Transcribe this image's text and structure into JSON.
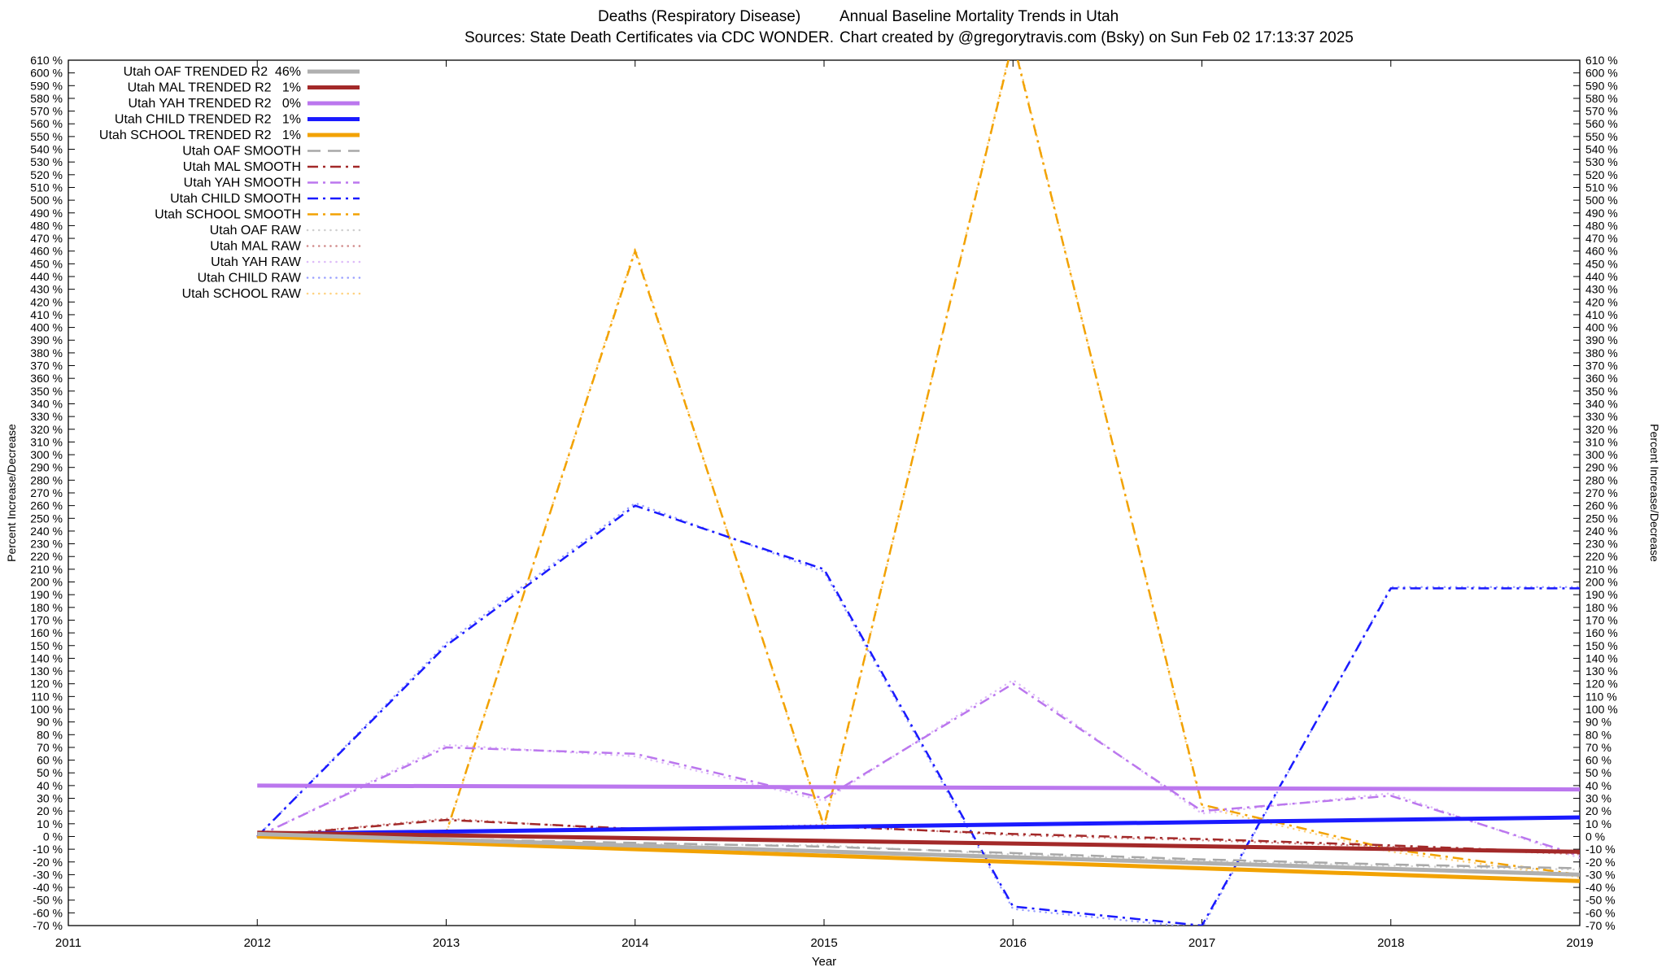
{
  "header": {
    "line1_left": "Deaths (Respiratory Disease)",
    "line1_right": "Annual Baseline Mortality Trends in Utah",
    "line2_left": "Sources: State Death Certificates via CDC WONDER.",
    "line2_right": "Chart created by @gregorytravis.com (Bsky) on Sun Feb 02 17:13:37 2025"
  },
  "chart_data": {
    "type": "line",
    "title": "Deaths (Respiratory Disease)  Annual Baseline Mortality Trends in Utah",
    "subtitle": "Sources: State Death Certificates via CDC WONDER.  Chart created by @gregorytravis.com (Bsky) on Sun Feb 02 17:13:37 2025",
    "xlabel": "Year",
    "ylabel_left": "Percent Increase/Decrease",
    "ylabel_right": "Percent Increase/Decrease",
    "x_range": [
      2011,
      2019
    ],
    "ylim": [
      -70,
      610
    ],
    "y_step": 10,
    "y_tick_suffix": " %",
    "x_ticks": [
      2011,
      2012,
      2013,
      2014,
      2015,
      2016,
      2017,
      2018,
      2019
    ],
    "grid": false,
    "legend_position": "top-left",
    "series": [
      {
        "key": "utah-oaf-trended",
        "legend": "Utah OAF TRENDED R2  46%",
        "color": "#b0b0b0",
        "style": "solid",
        "width": 5,
        "x": [
          2012,
          2019
        ],
        "y": [
          2,
          -30
        ]
      },
      {
        "key": "utah-mal-trended",
        "legend": "Utah MAL TRENDED R2   1%",
        "color": "#a32929",
        "style": "solid",
        "width": 5,
        "x": [
          2012,
          2019
        ],
        "y": [
          3,
          -12
        ]
      },
      {
        "key": "utah-yah-trended",
        "legend": "Utah YAH TRENDED R2   0%",
        "color": "#bb77ee",
        "style": "solid",
        "width": 5,
        "x": [
          2012,
          2019
        ],
        "y": [
          40,
          37
        ]
      },
      {
        "key": "utah-child-trended",
        "legend": "Utah CHILD TRENDED R2   1%",
        "color": "#1a1aff",
        "style": "solid",
        "width": 5,
        "x": [
          2012,
          2019
        ],
        "y": [
          2,
          15
        ]
      },
      {
        "key": "utah-school-trended",
        "legend": "Utah SCHOOL TRENDED R2   1%",
        "color": "#f2a202",
        "style": "solid",
        "width": 5,
        "x": [
          2012,
          2019
        ],
        "y": [
          0,
          -35
        ]
      },
      {
        "key": "utah-oaf-smooth",
        "legend": "Utah OAF SMOOTH",
        "color": "#a8a8a8",
        "style": "dash",
        "width": 2.5,
        "x": [
          2012,
          2013,
          2014,
          2015,
          2016,
          2017,
          2018,
          2019
        ],
        "y": [
          0,
          -2,
          -5,
          -8,
          -13,
          -18,
          -22,
          -25
        ]
      },
      {
        "key": "utah-mal-smooth",
        "legend": "Utah MAL SMOOTH",
        "color": "#a32929",
        "style": "dashdot",
        "width": 2.5,
        "x": [
          2012,
          2013,
          2014,
          2015,
          2016,
          2017,
          2018,
          2019
        ],
        "y": [
          0,
          13,
          6,
          8,
          2,
          -2,
          -7,
          -13
        ]
      },
      {
        "key": "utah-yah-smooth",
        "legend": "Utah YAH SMOOTH",
        "color": "#bb77ee",
        "style": "dashdot",
        "width": 2.5,
        "x": [
          2012,
          2013,
          2014,
          2015,
          2016,
          2017,
          2018,
          2019
        ],
        "y": [
          0,
          70,
          65,
          30,
          120,
          20,
          32,
          -15
        ]
      },
      {
        "key": "utah-child-smooth",
        "legend": "Utah CHILD SMOOTH",
        "color": "#1a1aff",
        "style": "dashdot",
        "width": 2.5,
        "x": [
          2012,
          2013,
          2014,
          2015,
          2016,
          2017,
          2018,
          2019
        ],
        "y": [
          0,
          150,
          260,
          210,
          -55,
          -70,
          195,
          195
        ]
      },
      {
        "key": "utah-school-smooth",
        "legend": "Utah SCHOOL SMOOTH",
        "color": "#f2a202",
        "style": "dashdot",
        "width": 2.5,
        "x": [
          2012,
          2013,
          2014,
          2015,
          2016,
          2017,
          2018,
          2019
        ],
        "y": [
          0,
          3,
          460,
          8,
          625,
          25,
          -10,
          -30
        ]
      },
      {
        "key": "utah-oaf-raw",
        "legend": "Utah OAF RAW",
        "color": "#cfcfcf",
        "style": "dot",
        "width": 2.5,
        "x": [
          2012,
          2013,
          2014,
          2015,
          2016,
          2017,
          2018,
          2019
        ],
        "y": [
          0,
          -3,
          -6,
          -7,
          -14,
          -19,
          -23,
          -26
        ]
      },
      {
        "key": "utah-mal-raw",
        "legend": "Utah MAL RAW",
        "color": "#d08888",
        "style": "dot",
        "width": 2.5,
        "x": [
          2012,
          2013,
          2014,
          2015,
          2016,
          2017,
          2018,
          2019
        ],
        "y": [
          0,
          14,
          5,
          9,
          1,
          -3,
          -8,
          -14
        ]
      },
      {
        "key": "utah-yah-raw",
        "legend": "Utah YAH RAW",
        "color": "#ddbbf8",
        "style": "dot",
        "width": 2.5,
        "x": [
          2012,
          2013,
          2014,
          2015,
          2016,
          2017,
          2018,
          2019
        ],
        "y": [
          0,
          72,
          63,
          28,
          123,
          18,
          34,
          -17
        ]
      },
      {
        "key": "utah-child-raw",
        "legend": "Utah CHILD RAW",
        "color": "#9aa0ff",
        "style": "dot",
        "width": 2.5,
        "x": [
          2012,
          2013,
          2014,
          2015,
          2016,
          2017,
          2018,
          2019
        ],
        "y": [
          0,
          152,
          262,
          208,
          -57,
          -72,
          196,
          196
        ]
      },
      {
        "key": "utah-school-raw",
        "legend": "Utah SCHOOL RAW",
        "color": "#ffd280",
        "style": "dot",
        "width": 2.5,
        "x": [
          2012,
          2013,
          2014,
          2015,
          2016,
          2017,
          2018,
          2019
        ],
        "y": [
          0,
          2,
          462,
          6,
          627,
          23,
          -12,
          -32
        ]
      }
    ]
  }
}
